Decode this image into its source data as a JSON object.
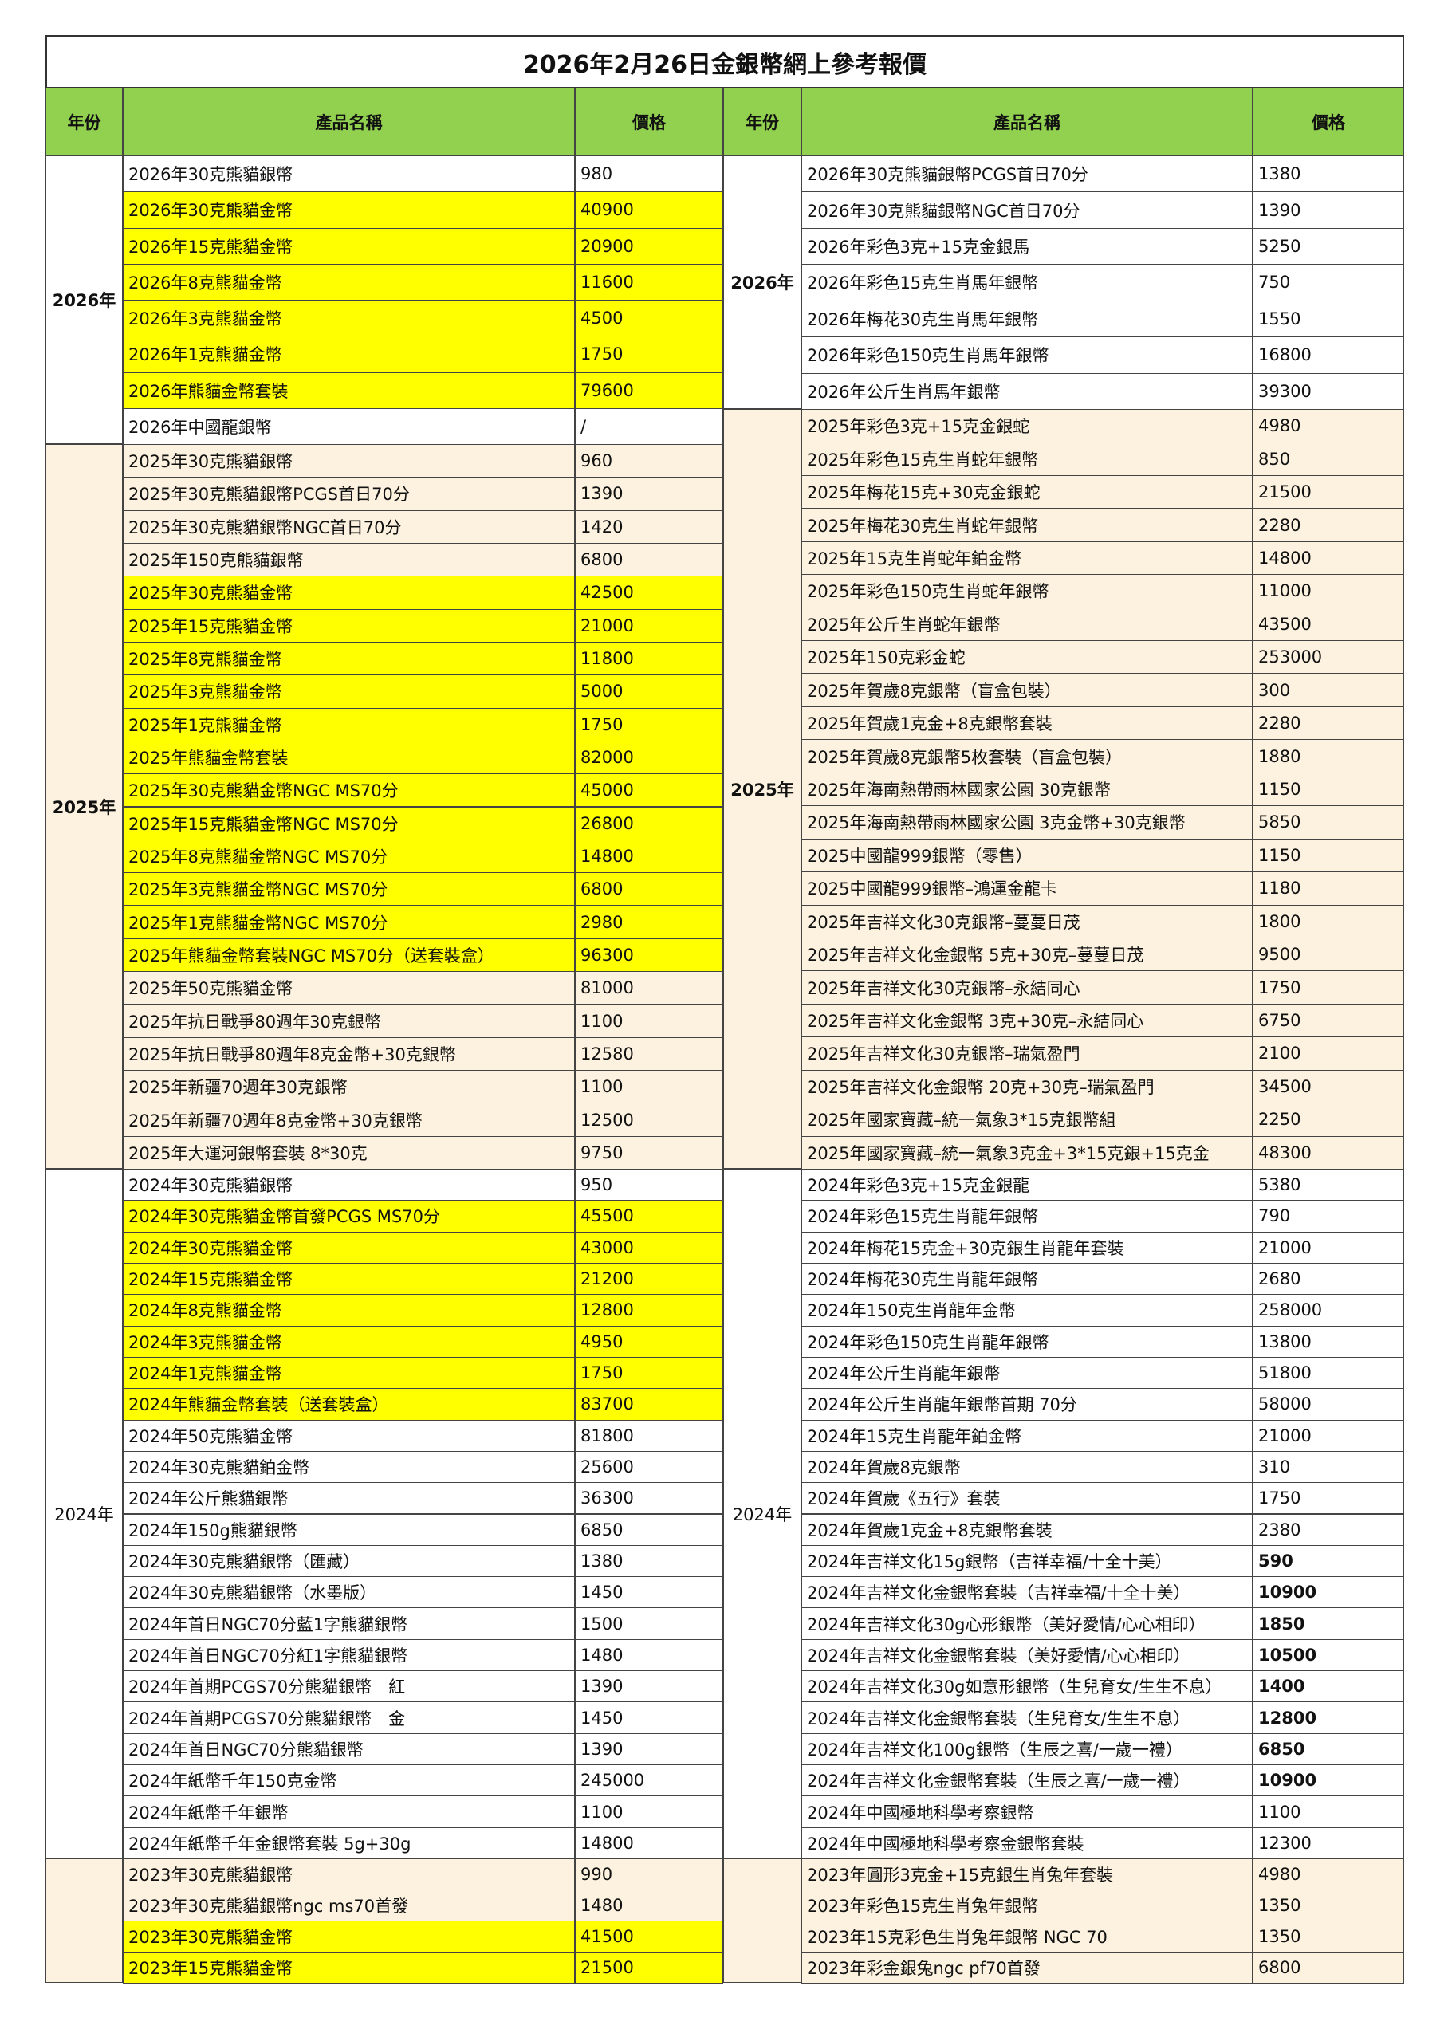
{
  "title": "2026年2月26日金銀幣網上參考報價",
  "headers": [
    "年份",
    "產品名稱",
    "價格",
    "年份",
    "產品名稱",
    "價格"
  ],
  "header_color": "#92d050",
  "highlight_color": "#ffff00",
  "shade_color": "#fdf2df",
  "left": [
    {
      "year": "2026年",
      "bold": true,
      "rows": [
        {
          "name": "2026年30克熊貓銀幣",
          "price": 980
        },
        {
          "name": "2026年30克熊貓金幣",
          "price": 40900,
          "highlight": true
        },
        {
          "name": "2026年15克熊貓金幣",
          "price": 20900,
          "highlight": true
        },
        {
          "name": "2026年8克熊貓金幣",
          "price": 11600,
          "highlight": true
        },
        {
          "name": "2026年3克熊貓金幣",
          "price": 4500,
          "highlight": true
        },
        {
          "name": "2026年1克熊貓金幣",
          "price": 1750,
          "highlight": true
        },
        {
          "name": "2026年熊貓金幣套裝",
          "price": 79600,
          "highlight": true
        },
        {
          "name": "2026年中國龍銀幣",
          "price": "/"
        }
      ]
    },
    {
      "year": "2025年",
      "bold": true,
      "shade": true,
      "rows": [
        {
          "name": "2025年30克熊貓銀幣",
          "price": 960
        },
        {
          "name": "2025年30克熊貓銀幣PCGS首日70分",
          "price": 1390
        },
        {
          "name": "2025年30克熊貓銀幣NGC首日70分",
          "price": 1420
        },
        {
          "name": "2025年150克熊貓銀幣",
          "price": 6800
        },
        {
          "name": "2025年30克熊貓金幣",
          "price": 42500,
          "highlight": true
        },
        {
          "name": "2025年15克熊貓金幣",
          "price": 21000,
          "highlight": true
        },
        {
          "name": "2025年8克熊貓金幣",
          "price": 11800,
          "highlight": true
        },
        {
          "name": "2025年3克熊貓金幣",
          "price": 5000,
          "highlight": true
        },
        {
          "name": "2025年1克熊貓金幣",
          "price": 1750,
          "highlight": true
        },
        {
          "name": "2025年熊貓金幣套裝",
          "price": 82000,
          "highlight": true
        },
        {
          "name": "2025年30克熊貓金幣NGC MS70分",
          "price": 45000,
          "highlight": true
        },
        {
          "name": "2025年15克熊貓金幣NGC MS70分",
          "price": 26800,
          "highlight": true
        },
        {
          "name": "2025年8克熊貓金幣NGC MS70分",
          "price": 14800,
          "highlight": true
        },
        {
          "name": "2025年3克熊貓金幣NGC MS70分",
          "price": 6800,
          "highlight": true
        },
        {
          "name": "2025年1克熊貓金幣NGC MS70分",
          "price": 2980,
          "highlight": true
        },
        {
          "name": "2025年熊貓金幣套裝NGC MS70分（送套裝盒）",
          "price": 96300,
          "highlight": true
        },
        {
          "name": "2025年50克熊貓金幣",
          "price": 81000
        },
        {
          "name": "2025年抗日戰爭80週年30克銀幣",
          "price": 1100
        },
        {
          "name": "2025年抗日戰爭80週年8克金幣+30克銀幣",
          "price": 12580
        },
        {
          "name": "2025年新疆70週年30克銀幣",
          "price": 1100
        },
        {
          "name": "2025年新疆70週年8克金幣+30克銀幣",
          "price": 12500
        },
        {
          "name": "2025年大運河銀幣套裝 8*30克",
          "price": 9750
        }
      ]
    },
    {
      "year": "2024年",
      "rows": [
        {
          "name": "2024年30克熊貓銀幣",
          "price": 950
        },
        {
          "name": "2024年30克熊貓金幣首發PCGS MS70分",
          "price": 45500,
          "highlight": true
        },
        {
          "name": "2024年30克熊貓金幣",
          "price": 43000,
          "highlight": true
        },
        {
          "name": "2024年15克熊貓金幣",
          "price": 21200,
          "highlight": true
        },
        {
          "name": "2024年8克熊貓金幣",
          "price": 12800,
          "highlight": true
        },
        {
          "name": "2024年3克熊貓金幣",
          "price": 4950,
          "highlight": true
        },
        {
          "name": "2024年1克熊貓金幣",
          "price": 1750,
          "highlight": true
        },
        {
          "name": "2024年熊貓金幣套裝（送套裝盒）",
          "price": 83700,
          "highlight": true
        },
        {
          "name": "2024年50克熊貓金幣",
          "price": 81800
        },
        {
          "name": "2024年30克熊貓鉑金幣",
          "price": 25600
        },
        {
          "name": "2024年公斤熊貓銀幣",
          "price": 36300
        },
        {
          "name": "2024年150g熊貓銀幣",
          "price": 6850
        },
        {
          "name": "2024年30克熊貓銀幣（匯藏）",
          "price": 1380
        },
        {
          "name": "2024年30克熊貓銀幣（水墨版）",
          "price": 1450
        },
        {
          "name": "2024年首日NGC70分藍1字熊貓銀幣",
          "price": 1500
        },
        {
          "name": "2024年首日NGC70分紅1字熊貓銀幣",
          "price": 1480
        },
        {
          "name": "2024年首期PCGS70分熊貓銀幣　紅",
          "price": 1390
        },
        {
          "name": "2024年首期PCGS70分熊貓銀幣　金",
          "price": 1450
        },
        {
          "name": "2024年首日NGC70分熊貓銀幣",
          "price": 1390
        },
        {
          "name": "2024年紙幣千年150克金幣",
          "price": 245000
        },
        {
          "name": "2024年紙幣千年銀幣",
          "price": 1100
        },
        {
          "name": "2024年紙幣千年金銀幣套裝 5g+30g",
          "price": 14800
        }
      ]
    },
    {
      "shade": true,
      "rows": [
        {
          "name": "2023年30克熊貓銀幣",
          "price": 990
        },
        {
          "name": "2023年30克熊貓銀幣ngc ms70首發",
          "price": 1480
        },
        {
          "name": "2023年30克熊貓金幣",
          "price": 41500,
          "highlight": true
        },
        {
          "name": "2023年15克熊貓金幣",
          "price": 21500,
          "highlight": true
        }
      ]
    }
  ],
  "right": [
    {
      "year": "2026年",
      "bold": true,
      "rows": [
        {
          "name": "2026年30克熊貓銀幣PCGS首日70分",
          "price": 1380
        },
        {
          "name": "2026年30克熊貓銀幣NGC首日70分",
          "price": 1390
        },
        {
          "name": "2026年彩色3克+15克金銀馬",
          "price": 5250
        },
        {
          "name": "2026年彩色15克生肖馬年銀幣",
          "price": 750
        },
        {
          "name": "2026年梅花30克生肖馬年銀幣",
          "price": 1550
        },
        {
          "name": "2026年彩色150克生肖馬年銀幣",
          "price": 16800
        },
        {
          "name": "2026年公斤生肖馬年銀幣",
          "price": 39300
        }
      ]
    },
    {
      "year": "2025年",
      "bold": true,
      "shade": true,
      "rows": [
        {
          "name": "2025年彩色3克+15克金銀蛇",
          "price": 4980
        },
        {
          "name": "2025年彩色15克生肖蛇年銀幣",
          "price": 850
        },
        {
          "name": "2025年梅花15克+30克金銀蛇",
          "price": 21500
        },
        {
          "name": "2025年梅花30克生肖蛇年銀幣",
          "price": 2280
        },
        {
          "name": "2025年15克生肖蛇年鉑金幣",
          "price": 14800
        },
        {
          "name": "2025年彩色150克生肖蛇年銀幣",
          "price": 11000
        },
        {
          "name": "2025年公斤生肖蛇年銀幣",
          "price": 43500
        },
        {
          "name": "2025年150克彩金蛇",
          "price": 253000
        },
        {
          "name": "2025年賀歲8克銀幣（盲盒包裝）",
          "price": 300
        },
        {
          "name": "2025年賀歲1克金+8克銀幣套裝",
          "price": 2280
        },
        {
          "name": "2025年賀歲8克銀幣5枚套裝（盲盒包裝）",
          "price": 1880
        },
        {
          "name": "2025年海南熱帶雨林國家公園 30克銀幣",
          "price": 1150
        },
        {
          "name": "2025年海南熱帶雨林國家公園 3克金幣+30克銀幣",
          "price": 5850
        },
        {
          "name": "2025中國龍999銀幣（零售）",
          "price": 1150
        },
        {
          "name": "2025中國龍999銀幣–鴻運金龍卡",
          "price": 1180
        },
        {
          "name": "2025年吉祥文化30克銀幣–蔓蔓日茂",
          "price": 1800
        },
        {
          "name": "2025年吉祥文化金銀幣 5克+30克–蔓蔓日茂",
          "price": 9500
        },
        {
          "name": "2025年吉祥文化30克銀幣–永結同心",
          "price": 1750
        },
        {
          "name": "2025年吉祥文化金銀幣 3克+30克–永結同心",
          "price": 6750
        },
        {
          "name": "2025年吉祥文化30克銀幣–瑞氣盈門",
          "price": 2100
        },
        {
          "name": "2025年吉祥文化金銀幣 20克+30克–瑞氣盈門",
          "price": 34500
        },
        {
          "name": "2025年國家寶藏–統一氣象3*15克銀幣組",
          "price": 2250
        },
        {
          "name": "2025年國家寶藏–統一氣象3克金+3*15克銀+15克金",
          "price": 48300
        }
      ]
    },
    {
      "year": "2024年",
      "rows": [
        {
          "name": "2024年彩色3克+15克金銀龍",
          "price": 5380
        },
        {
          "name": "2024年彩色15克生肖龍年銀幣",
          "price": 790
        },
        {
          "name": "2024年梅花15克金+30克銀生肖龍年套裝",
          "price": 21000
        },
        {
          "name": "2024年梅花30克生肖龍年銀幣",
          "price": 2680
        },
        {
          "name": "2024年150克生肖龍年金幣",
          "price": 258000
        },
        {
          "name": "2024年彩色150克生肖龍年銀幣",
          "price": 13800
        },
        {
          "name": "2024年公斤生肖龍年銀幣",
          "price": 51800
        },
        {
          "name": "2024年公斤生肖龍年銀幣首期 70分",
          "price": 58000
        },
        {
          "name": "2024年15克生肖龍年鉑金幣",
          "price": 21000
        },
        {
          "name": "2024年賀歲8克銀幣",
          "price": 310
        },
        {
          "name": "2024年賀歲《五行》套裝",
          "price": 1750
        },
        {
          "name": "2024年賀歲1克金+8克銀幣套裝",
          "price": 2380
        },
        {
          "name": "2024年吉祥文化15g銀幣（吉祥幸福/十全十美）",
          "price": 590,
          "bold": true
        },
        {
          "name": "2024年吉祥文化金銀幣套裝（吉祥幸福/十全十美）",
          "price": 10900,
          "bold": true
        },
        {
          "name": "2024年吉祥文化30g心形銀幣（美好愛情/心心相印）",
          "price": 1850,
          "bold": true
        },
        {
          "name": "2024年吉祥文化金銀幣套裝（美好愛情/心心相印）",
          "price": 10500,
          "bold": true
        },
        {
          "name": "2024年吉祥文化30g如意形銀幣（生兒育女/生生不息）",
          "price": 1400,
          "bold": true
        },
        {
          "name": "2024年吉祥文化金銀幣套裝（生兒育女/生生不息）",
          "price": 12800,
          "bold": true
        },
        {
          "name": "2024年吉祥文化100g銀幣（生辰之喜/一歲一禮）",
          "price": 6850,
          "bold": true
        },
        {
          "name": "2024年吉祥文化金銀幣套裝（生辰之喜/一歲一禮）",
          "price": 10900,
          "bold": true
        },
        {
          "name": "2024年中國極地科學考察銀幣",
          "price": 1100
        },
        {
          "name": "2024年中國極地科學考察金銀幣套裝",
          "price": 12300
        }
      ]
    },
    {
      "shade": true,
      "rows": [
        {
          "name": "2023年圓形3克金+15克銀生肖兔年套裝",
          "price": 4980
        },
        {
          "name": "2023年彩色15克生肖兔年銀幣",
          "price": 1350
        },
        {
          "name": "2023年15克彩色生肖兔年銀幣 NGC 70",
          "price": 1350
        },
        {
          "name": "2023年彩金銀兔ngc pf70首發",
          "price": 6800
        }
      ]
    }
  ]
}
